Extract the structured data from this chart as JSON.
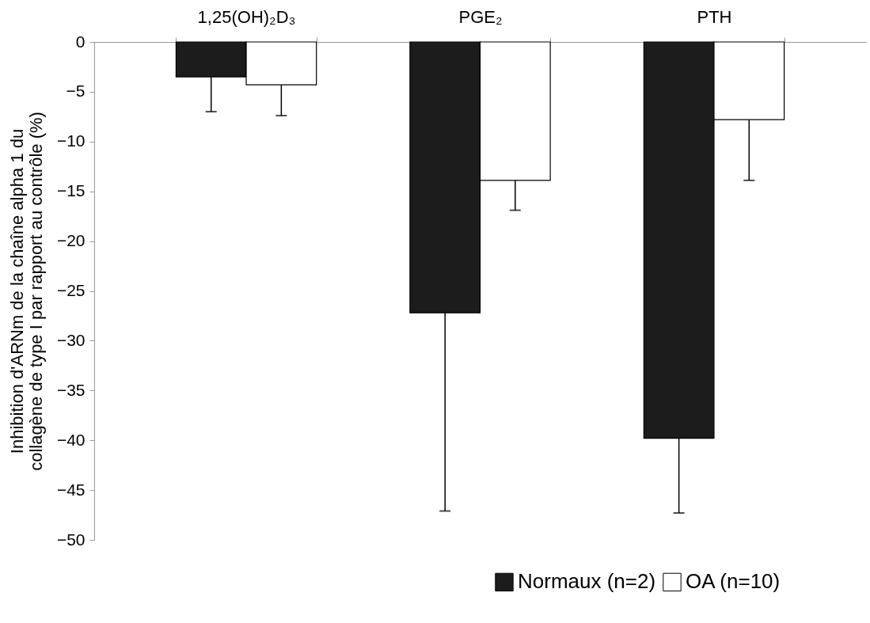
{
  "chart_data": {
    "type": "bar",
    "ylabel": "Inhibition d'ARNm de la chaîne alpha 1 du collagène de type I par rapport au contrôle (%)",
    "categories": [
      "1,25(OH)₂D₃",
      "PGE₂",
      "PTH"
    ],
    "series": [
      {
        "name": "Normaux (n=2)",
        "color": "#1c1c1c",
        "values": [
          -3.5,
          -27.2,
          -39.8
        ],
        "errors": [
          [
            -7.0,
            -3.5
          ],
          [
            -47.1,
            -27.2
          ],
          [
            -47.3,
            -39.8
          ]
        ]
      },
      {
        "name": "OA (n=10)",
        "color": "#ffffff",
        "values": [
          -4.3,
          -13.9,
          -7.8
        ],
        "errors": [
          [
            -7.4,
            -4.3
          ],
          [
            -16.9,
            -13.9
          ],
          [
            -13.9,
            -7.8
          ]
        ]
      }
    ],
    "ylim": [
      -50,
      0
    ],
    "yticks": [
      0,
      -5,
      -10,
      -15,
      -20,
      -25,
      -30,
      -35,
      -40,
      -45,
      -50
    ],
    "grid": false,
    "legend": "bottom right"
  }
}
